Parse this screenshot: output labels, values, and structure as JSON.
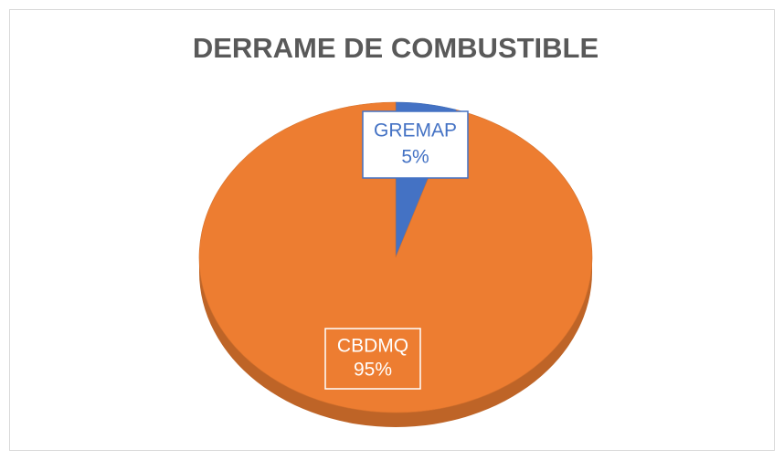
{
  "chart_data": {
    "type": "pie",
    "title": "DERRAME DE COMBUSTIBLE",
    "categories": [
      "GREMAP",
      "CBDMQ"
    ],
    "values": [
      5,
      95
    ],
    "value_labels": [
      "5%",
      "95%"
    ],
    "colors": [
      "#4472c4",
      "#ed7d31"
    ]
  }
}
